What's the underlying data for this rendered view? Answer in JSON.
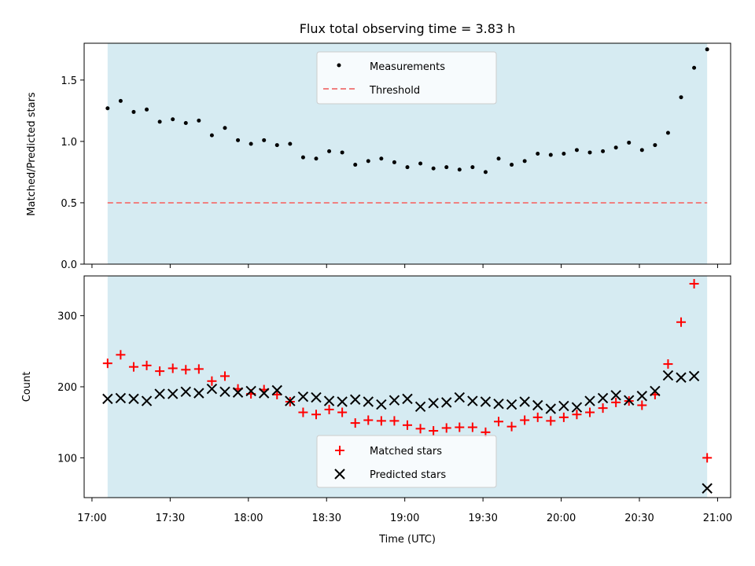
{
  "chart_data": [
    {
      "type": "scatter",
      "title": "Flux total observing time = 3.83 h",
      "ylabel": "Matched/Predicted stars",
      "xlabel": "",
      "xlim": [
        "16:57",
        "21:05"
      ],
      "ylim": [
        0,
        1.8
      ],
      "yticks": [
        0.0,
        0.5,
        1.0,
        1.5
      ],
      "ytick_labels": [
        "0.0",
        "0.5",
        "1.0",
        "1.5"
      ],
      "grid": false,
      "shaded_span": {
        "start": "17:06",
        "end": "20:56",
        "color": "#add8e6"
      },
      "legend": {
        "placement": "upper center",
        "entries": [
          {
            "label": "Measurements",
            "marker": "dot",
            "color": "#000000"
          },
          {
            "label": "Threshold",
            "marker": "dashed-line",
            "color": "#f08080"
          }
        ]
      },
      "series": [
        {
          "name": "Measurements",
          "x": [
            "17:06",
            "17:11",
            "17:16",
            "17:21",
            "17:26",
            "17:31",
            "17:36",
            "17:41",
            "17:46",
            "17:51",
            "17:56",
            "18:01",
            "18:06",
            "18:11",
            "18:16",
            "18:21",
            "18:26",
            "18:31",
            "18:36",
            "18:41",
            "18:46",
            "18:51",
            "18:56",
            "19:01",
            "19:06",
            "19:11",
            "19:16",
            "19:21",
            "19:26",
            "19:31",
            "19:36",
            "19:41",
            "19:46",
            "19:51",
            "19:56",
            "20:01",
            "20:06",
            "20:11",
            "20:16",
            "20:21",
            "20:26",
            "20:31",
            "20:36",
            "20:41",
            "20:46",
            "20:51",
            "20:56"
          ],
          "values": [
            1.27,
            1.33,
            1.24,
            1.26,
            1.16,
            1.18,
            1.15,
            1.17,
            1.05,
            1.11,
            1.01,
            0.98,
            1.01,
            0.97,
            0.98,
            0.87,
            0.86,
            0.92,
            0.91,
            0.81,
            0.84,
            0.86,
            0.83,
            0.79,
            0.82,
            0.78,
            0.79,
            0.77,
            0.79,
            0.75,
            0.86,
            0.81,
            0.84,
            0.9,
            0.89,
            0.9,
            0.93,
            0.91,
            0.92,
            0.95,
            0.99,
            0.93,
            0.97,
            1.07,
            1.36,
            1.6,
            1.75
          ]
        },
        {
          "name": "Threshold",
          "style": "dashed",
          "x": [
            "17:06",
            "20:56"
          ],
          "values": [
            0.5,
            0.5
          ]
        }
      ]
    },
    {
      "type": "scatter",
      "title": "",
      "ylabel": "Count",
      "xlabel": "Time (UTC)",
      "xlim": [
        "16:57",
        "21:05"
      ],
      "ylim": [
        44,
        356
      ],
      "yticks": [
        100,
        200,
        300
      ],
      "xtick_labels": [
        "17:00",
        "17:30",
        "18:00",
        "18:30",
        "19:00",
        "19:30",
        "20:00",
        "20:30",
        "21:00"
      ],
      "grid": false,
      "shaded_span": {
        "start": "17:06",
        "end": "20:56",
        "color": "#add8e6"
      },
      "legend": {
        "placement": "lower center",
        "entries": [
          {
            "label": "Matched stars",
            "marker": "plus",
            "color": "#ff0000"
          },
          {
            "label": "Predicted stars",
            "marker": "x",
            "color": "#000000"
          }
        ]
      },
      "series": [
        {
          "name": "Matched stars",
          "x": [
            "17:06",
            "17:11",
            "17:16",
            "17:21",
            "17:26",
            "17:31",
            "17:36",
            "17:41",
            "17:46",
            "17:51",
            "17:56",
            "18:01",
            "18:06",
            "18:11",
            "18:16",
            "18:21",
            "18:26",
            "18:31",
            "18:36",
            "18:41",
            "18:46",
            "18:51",
            "18:56",
            "19:01",
            "19:06",
            "19:11",
            "19:16",
            "19:21",
            "19:26",
            "19:31",
            "19:36",
            "19:41",
            "19:46",
            "19:51",
            "19:56",
            "20:01",
            "20:06",
            "20:11",
            "20:16",
            "20:21",
            "20:26",
            "20:31",
            "20:36",
            "20:41",
            "20:46",
            "20:51",
            "20:56"
          ],
          "values": [
            233,
            245,
            228,
            230,
            222,
            226,
            224,
            225,
            208,
            215,
            197,
            190,
            196,
            189,
            179,
            164,
            161,
            168,
            164,
            149,
            153,
            152,
            152,
            146,
            141,
            138,
            142,
            143,
            143,
            136,
            151,
            144,
            153,
            157,
            152,
            157,
            161,
            164,
            170,
            178,
            180,
            174,
            189,
            232,
            291,
            345,
            100
          ]
        },
        {
          "name": "Predicted stars",
          "x": [
            "17:06",
            "17:11",
            "17:16",
            "17:21",
            "17:26",
            "17:31",
            "17:36",
            "17:41",
            "17:46",
            "17:51",
            "17:56",
            "18:01",
            "18:06",
            "18:11",
            "18:16",
            "18:21",
            "18:26",
            "18:31",
            "18:36",
            "18:41",
            "18:46",
            "18:51",
            "18:56",
            "19:01",
            "19:06",
            "19:11",
            "19:16",
            "19:21",
            "19:26",
            "19:31",
            "19:36",
            "19:41",
            "19:46",
            "19:51",
            "19:56",
            "20:01",
            "20:06",
            "20:11",
            "20:16",
            "20:21",
            "20:26",
            "20:31",
            "20:36",
            "20:41",
            "20:46",
            "20:51",
            "20:56"
          ],
          "values": [
            183,
            184,
            183,
            180,
            190,
            190,
            193,
            191,
            197,
            193,
            192,
            194,
            191,
            195,
            180,
            186,
            185,
            180,
            179,
            182,
            179,
            175,
            181,
            183,
            172,
            177,
            178,
            185,
            180,
            179,
            176,
            175,
            179,
            174,
            169,
            173,
            171,
            180,
            184,
            188,
            181,
            187,
            194,
            216,
            213,
            215,
            57
          ]
        }
      ]
    }
  ]
}
